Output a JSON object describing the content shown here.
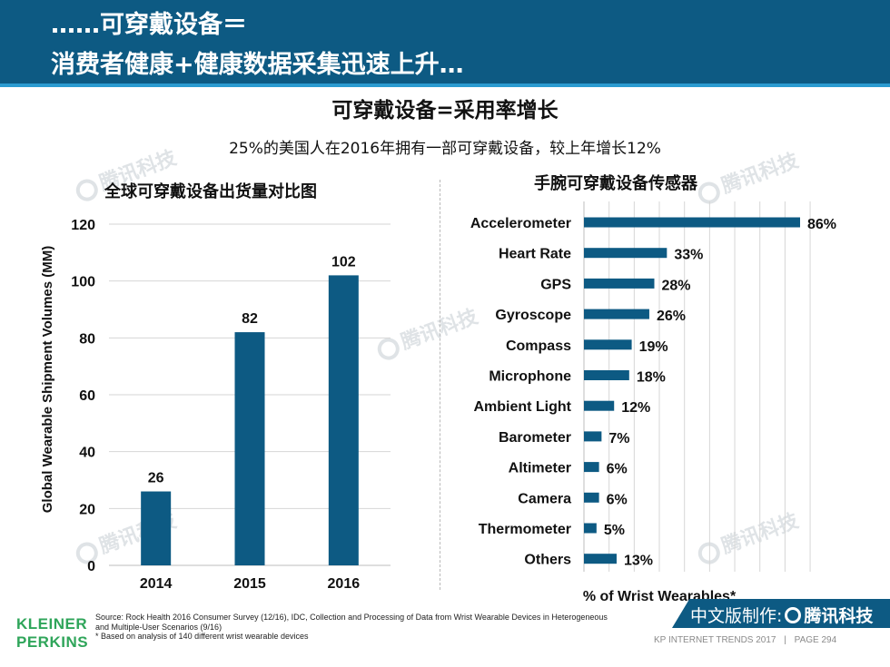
{
  "header": {
    "line1": "……可穿戴设备＝",
    "line2": "消费者健康+健康数据采集迅速上升…"
  },
  "main_title": "可穿戴设备=采用率增长",
  "subtitle": "25%的美国人在2016年拥有一部可穿戴设备，较上年增长12%",
  "watermark": "腾讯科技",
  "footer": {
    "logo_line1": "KLEINER",
    "logo_line2": "PERKINS",
    "source_line1": "Source: Rock Health 2016 Consumer Survey (12/16), IDC, Collection and Processing of Data from Wrist Wearable Devices in Heterogeneous",
    "source_line2": "and Multiple-User Scenarios (9/16)",
    "source_line3": "* Based on analysis of 140 different wrist wearable devices",
    "report": "KP INTERNET TRENDS 2017",
    "separator": "|",
    "page": "PAGE 294"
  },
  "badge": {
    "prefix": "中文版制作:",
    "brand": "腾讯科技"
  },
  "colors": {
    "header": "#0d5a83",
    "stripe": "#2b9bd0",
    "bar": "#0d5a83",
    "logo": "#2fa55a"
  },
  "chart_data": [
    {
      "type": "bar",
      "title": "全球可穿戴设备出货量对比图",
      "categories": [
        "2014",
        "2015",
        "2016"
      ],
      "values": [
        26,
        82,
        102
      ],
      "data_labels": [
        "26",
        "82",
        "102"
      ],
      "xlabel": "",
      "ylabel": "Global Wearable Shipment Volumes (MM)",
      "ylim": [
        0,
        120
      ],
      "yticks": [
        0,
        20,
        40,
        60,
        80,
        100,
        120
      ],
      "grid": true
    },
    {
      "type": "bar",
      "orientation": "horizontal",
      "title": "手腕可穿戴设备传感器",
      "categories": [
        "Accelerometer",
        "Heart Rate",
        "GPS",
        "Gyroscope",
        "Compass",
        "Microphone",
        "Ambient Light",
        "Barometer",
        "Altimeter",
        "Camera",
        "Thermometer",
        "Others"
      ],
      "values": [
        86,
        33,
        28,
        26,
        19,
        18,
        12,
        7,
        6,
        6,
        5,
        13
      ],
      "data_labels": [
        "86%",
        "33%",
        "28%",
        "26%",
        "19%",
        "18%",
        "12%",
        "7%",
        "6%",
        "6%",
        "5%",
        "13%"
      ],
      "xlabel": "% of Wrist Wearables*",
      "xlim": [
        0,
        90
      ],
      "grid": true
    }
  ]
}
